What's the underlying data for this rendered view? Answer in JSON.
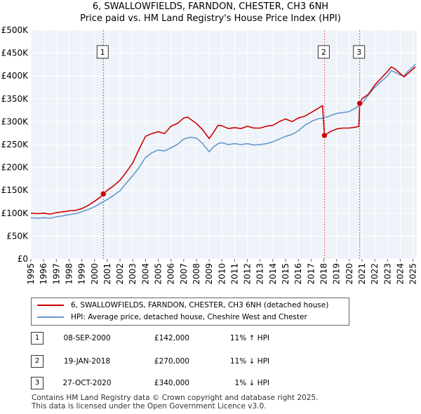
{
  "chart_data": {
    "type": "line",
    "title": "6, SWALLOWFIELDS, FARNDON, CHESTER, CH3 6NH",
    "subtitle": "Price paid vs. HM Land Registry's House Price Index (HPI)",
    "xlabel": "",
    "ylabel": "",
    "xlim": [
      1995,
      2025.3
    ],
    "ylim": [
      0,
      500000
    ],
    "x_ticks": [
      "1995",
      "1996",
      "1997",
      "1998",
      "1999",
      "2000",
      "2001",
      "2002",
      "2003",
      "2004",
      "2005",
      "2006",
      "2007",
      "2008",
      "2009",
      "2010",
      "2011",
      "2012",
      "2013",
      "2014",
      "2015",
      "2016",
      "2017",
      "2018",
      "2019",
      "2020",
      "2021",
      "2022",
      "2023",
      "2024",
      "2025"
    ],
    "y_ticks": [
      {
        "value": 0,
        "label": "£0"
      },
      {
        "value": 50000,
        "label": "£50K"
      },
      {
        "value": 100000,
        "label": "£100K"
      },
      {
        "value": 150000,
        "label": "£150K"
      },
      {
        "value": 200000,
        "label": "£200K"
      },
      {
        "value": 250000,
        "label": "£250K"
      },
      {
        "value": 300000,
        "label": "£300K"
      },
      {
        "value": 350000,
        "label": "£350K"
      },
      {
        "value": 400000,
        "label": "£400K"
      },
      {
        "value": 450000,
        "label": "£450K"
      },
      {
        "value": 500000,
        "label": "£500K"
      }
    ],
    "series": [
      {
        "name": "6, SWALLOWFIELDS, FARNDON, CHESTER, CH3 6NH (detached house)",
        "color": "#cc0000",
        "x": [
          1995,
          1995.5,
          1996,
          1996.5,
          1997,
          1997.5,
          1998,
          1998.5,
          1999,
          1999.5,
          2000,
          2000.5,
          2000.69,
          2001,
          2001.5,
          2002,
          2002.5,
          2003,
          2003.5,
          2004,
          2004.5,
          2005,
          2005.5,
          2006,
          2006.5,
          2007,
          2007.3,
          2007.8,
          2008,
          2008.5,
          2009,
          2009.3,
          2009.7,
          2010,
          2010.5,
          2011,
          2011.5,
          2012,
          2012.5,
          2013,
          2013.5,
          2014,
          2014.5,
          2015,
          2015.5,
          2016,
          2016.5,
          2017,
          2017.5,
          2017.9,
          2018.05,
          2018.5,
          2019,
          2019.5,
          2020,
          2020.5,
          2020.75,
          2020.82,
          2021,
          2021.5,
          2022,
          2022.5,
          2023,
          2023.3,
          2023.6,
          2024,
          2024.3,
          2024.6,
          2025,
          2025.2
        ],
        "y": [
          100000,
          99000,
          100000,
          98000,
          101000,
          103000,
          105000,
          106000,
          110000,
          117000,
          126000,
          136000,
          142000,
          150000,
          160000,
          172000,
          190000,
          210000,
          240000,
          268000,
          274000,
          278000,
          274000,
          290000,
          296000,
          308000,
          310000,
          300000,
          296000,
          282000,
          263000,
          275000,
          292000,
          291000,
          285000,
          287000,
          285000,
          290000,
          286000,
          286000,
          290000,
          292000,
          300000,
          306000,
          300000,
          308000,
          312000,
          320000,
          328000,
          335000,
          270000,
          278000,
          284000,
          286000,
          286000,
          288000,
          290000,
          340000,
          350000,
          360000,
          380000,
          395000,
          410000,
          420000,
          415000,
          405000,
          398000,
          405000,
          415000,
          420000
        ]
      },
      {
        "name": "HPI: Average price, detached house, Cheshire West and Chester",
        "color": "#6699cc",
        "x": [
          1995,
          1995.5,
          1996,
          1996.5,
          1997,
          1997.5,
          1998,
          1998.5,
          1999,
          1999.5,
          2000,
          2000.5,
          2001,
          2001.5,
          2002,
          2002.5,
          2003,
          2003.5,
          2004,
          2004.5,
          2005,
          2005.5,
          2006,
          2006.5,
          2007,
          2007.5,
          2008,
          2008.5,
          2009,
          2009.3,
          2009.7,
          2010,
          2010.5,
          2011,
          2011.5,
          2012,
          2012.5,
          2013,
          2013.5,
          2014,
          2014.5,
          2015,
          2015.5,
          2016,
          2016.5,
          2017,
          2017.5,
          2018,
          2018.5,
          2019,
          2019.5,
          2020,
          2020.5,
          2021,
          2021.5,
          2022,
          2022.5,
          2023,
          2023.3,
          2023.6,
          2024,
          2024.3,
          2024.6,
          2025,
          2025.2
        ],
        "y": [
          90000,
          89000,
          90000,
          89000,
          92000,
          94000,
          97000,
          99000,
          103000,
          108000,
          114000,
          122000,
          130000,
          139000,
          149000,
          166000,
          182000,
          200000,
          222000,
          232000,
          238000,
          236000,
          243000,
          250000,
          262000,
          266000,
          264000,
          252000,
          234000,
          244000,
          252000,
          254000,
          250000,
          252000,
          250000,
          252000,
          249000,
          250000,
          252000,
          256000,
          262000,
          268000,
          272000,
          280000,
          292000,
          300000,
          306000,
          308000,
          313000,
          318000,
          320000,
          322000,
          330000,
          340000,
          358000,
          375000,
          388000,
          400000,
          412000,
          408000,
          402000,
          400000,
          410000,
          420000,
          426000
        ]
      }
    ],
    "sales": [
      {
        "label": "1",
        "x": 2000.69,
        "y": 142000
      },
      {
        "label": "2",
        "x": 2018.05,
        "y": 270000
      },
      {
        "label": "3",
        "x": 2020.82,
        "y": 340000
      }
    ]
  },
  "legend": {
    "property_label": "6, SWALLOWFIELDS, FARNDON, CHESTER, CH3 6NH (detached house)",
    "hpi_label": "HPI: Average price, detached house, Cheshire West and Chester",
    "property_color": "#cc0000",
    "hpi_color": "#6699cc"
  },
  "transactions": [
    {
      "num": "1",
      "date": "08-SEP-2000",
      "price": "£142,000",
      "hpi": "11% ↑ HPI"
    },
    {
      "num": "2",
      "date": "19-JAN-2018",
      "price": "£270,000",
      "hpi": "11% ↓ HPI"
    },
    {
      "num": "3",
      "date": "27-OCT-2020",
      "price": "£340,000",
      "hpi": "1% ↓ HPI"
    }
  ],
  "footer": {
    "line1": "Contains HM Land Registry data © Crown copyright and database right 2025.",
    "line2": "This data is licensed under the Open Government Licence v3.0."
  }
}
